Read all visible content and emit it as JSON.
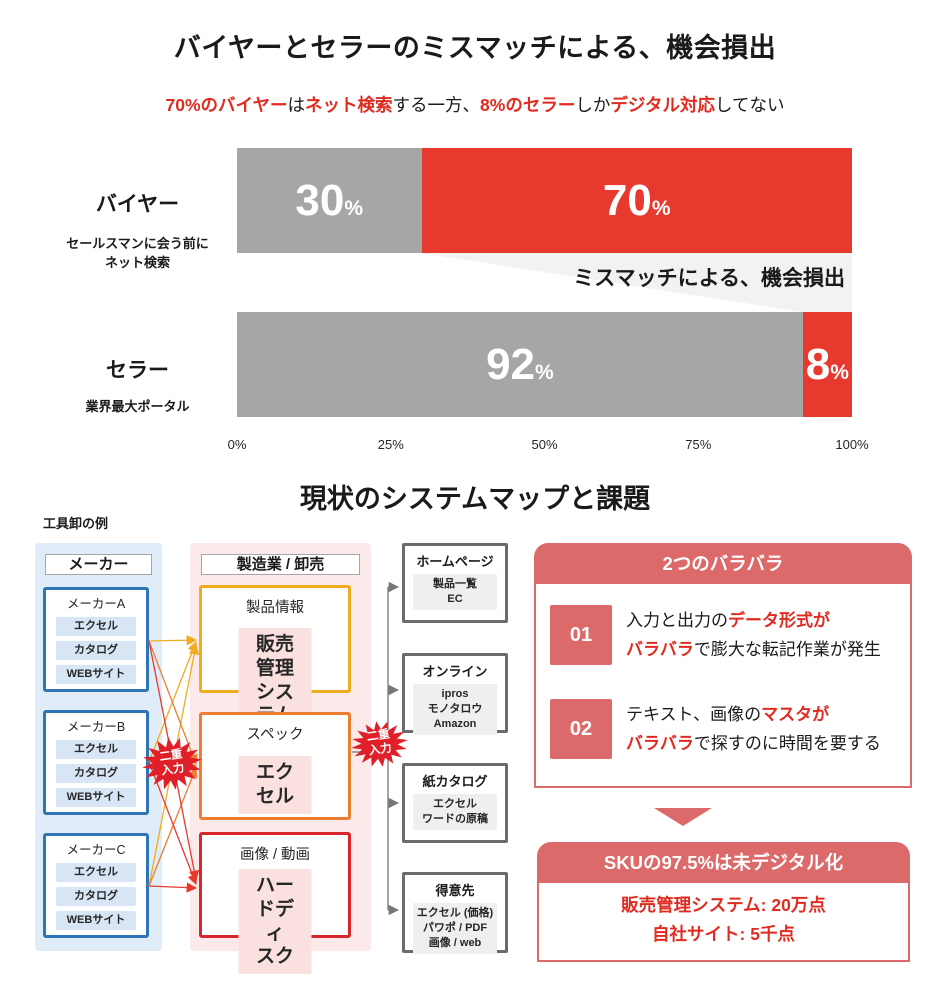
{
  "colors": {
    "red": "#E8392F",
    "gray": "#A6A6A6",
    "light_gray": "#F2F2F2",
    "salmon": "#DD6A6B",
    "text_red": "#E02B20",
    "burst_red": "#E02028",
    "blue_border": "#2E75B6",
    "blue_col_bg": "#E1ECF9",
    "blue_item_bg": "#D7E5F5",
    "pink_col_bg": "#FCE9E9",
    "pink_inner_bg": "#FBE0E0",
    "gold": "#EFAC1E",
    "orange": "#ED7D31",
    "mid_red": "#D7262C",
    "out_border": "#6B6B6B",
    "out_inner_bg": "#EFEFEF"
  },
  "section1": {
    "title": "バイヤーとセラーのミスマッチによる、機会損出",
    "subtitle_parts": [
      {
        "t": "70%のバイヤー",
        "red": true
      },
      {
        "t": "は",
        "red": false
      },
      {
        "t": "ネット検索",
        "red": true
      },
      {
        "t": "する一方、",
        "red": false
      },
      {
        "t": "8%のセラー",
        "red": true
      },
      {
        "t": "しか",
        "red": false
      },
      {
        "t": "デジタル対応",
        "red": true
      },
      {
        "t": "してない",
        "red": false
      }
    ],
    "mismatch_label": "ミスマッチによる、機会損出",
    "rows": [
      {
        "label": "バイヤー",
        "sublabel": "セールスマンに会う前に\nネット検索",
        "segments": [
          {
            "value": 30,
            "color": "gray"
          },
          {
            "value": 70,
            "color": "red"
          }
        ]
      },
      {
        "label": "セラー",
        "sublabel": "業界最大ポータル",
        "segments": [
          {
            "value": 92,
            "color": "gray"
          },
          {
            "value": 8,
            "color": "red"
          }
        ]
      }
    ],
    "axis_ticks": [
      "0%",
      "25%",
      "50%",
      "75%",
      "100%"
    ]
  },
  "chart_data": {
    "type": "bar",
    "orientation": "horizontal",
    "stacked": true,
    "categories": [
      "バイヤー",
      "セラー"
    ],
    "category_notes": [
      "セールスマンに会う前にネット検索",
      "業界最大ポータル"
    ],
    "series": [
      {
        "name": "gray-segment",
        "values": [
          30,
          92
        ],
        "color": "#A6A6A6"
      },
      {
        "name": "red-segment",
        "values": [
          70,
          8
        ],
        "color": "#E8392F"
      }
    ],
    "title": "バイヤーとセラーのミスマッチによる、機会損出",
    "xlabel": "",
    "ylabel": "",
    "xlim": [
      0,
      100
    ],
    "x_ticks": [
      "0%",
      "25%",
      "50%",
      "75%",
      "100%"
    ],
    "annotations": [
      "ミスマッチによる、機会損出"
    ],
    "legend": false,
    "grid": false
  },
  "section2": {
    "title": "現状のシステムマップと課題",
    "example_label": "工具卸の例",
    "starburst_label": "二重\n入力",
    "maker_column": {
      "header": "メーカー",
      "makers": [
        {
          "title": "メーカーA",
          "items": [
            "エクセル",
            "カタログ",
            "WEBサイト"
          ]
        },
        {
          "title": "メーカーB",
          "items": [
            "エクセル",
            "カタログ",
            "WEBサイト"
          ]
        },
        {
          "title": "メーカーC",
          "items": [
            "エクセル",
            "カタログ",
            "WEBサイト"
          ]
        }
      ]
    },
    "middle_column": {
      "header": "製造業 / 卸売",
      "boxes": [
        {
          "title": "製品情報",
          "inner": "販売管理\nシステム",
          "color": "gold"
        },
        {
          "title": "スペック",
          "inner": "エクセル",
          "color": "orange"
        },
        {
          "title": "画像 / 動画",
          "inner": "ハードディ\nスク",
          "color": "mid_red"
        }
      ]
    },
    "output_boxes": [
      {
        "title": "ホームページ",
        "lines": [
          "製品一覧",
          "EC"
        ]
      },
      {
        "title": "オンライン",
        "lines": [
          "ipros",
          "モノタロウ",
          "Amazon"
        ]
      },
      {
        "title": "紙カタログ",
        "lines": [
          "エクセル",
          "ワードの原稿"
        ]
      },
      {
        "title": "得意先",
        "lines": [
          "エクセル (価格)",
          "パワポ / PDF",
          "画像 / web"
        ]
      }
    ],
    "issues_panel": {
      "header": "2つのバラバラ",
      "issues": [
        {
          "num": "01",
          "lines": [
            [
              {
                "t": "入力と出力の",
                "red": false
              },
              {
                "t": "データ形式が",
                "red": true
              }
            ],
            [
              {
                "t": "バラバラ",
                "red": true
              },
              {
                "t": "で膨大な転記作業が発生",
                "red": false
              }
            ]
          ]
        },
        {
          "num": "02",
          "lines": [
            [
              {
                "t": "テキスト、画像の",
                "red": false
              },
              {
                "t": "マスタが",
                "red": true
              }
            ],
            [
              {
                "t": "バラバラ",
                "red": true
              },
              {
                "t": "で探すのに時間を要する",
                "red": false
              }
            ]
          ]
        }
      ]
    },
    "sku_panel": {
      "header": "SKUの97.5%は未デジタル化",
      "lines": [
        "販売管理システム: 20万点",
        "自社サイト: 5千点"
      ]
    }
  }
}
